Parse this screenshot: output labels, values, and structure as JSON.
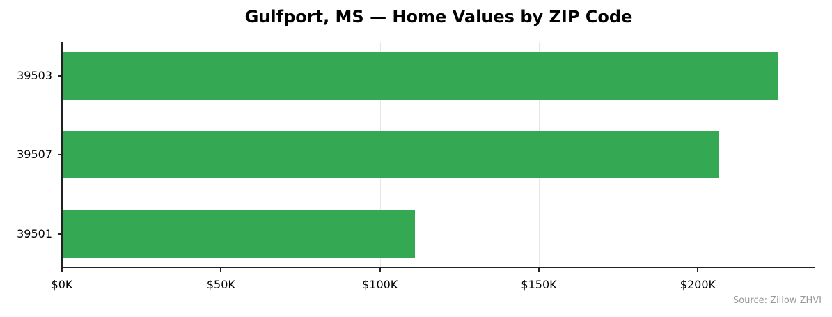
{
  "chart_data": {
    "type": "bar",
    "orientation": "horizontal",
    "title": "Gulfport, MS — Home Values by ZIP Code",
    "categories": [
      "39503",
      "39507",
      "39501"
    ],
    "values": [
      225400,
      206700,
      111000
    ],
    "xlabel": "",
    "ylabel": "",
    "xlim": [
      0,
      236700
    ],
    "x_ticks": [
      0,
      50000,
      100000,
      150000,
      200000
    ],
    "x_tick_labels": [
      "$0K",
      "$50K",
      "$100K",
      "$150K",
      "$200K"
    ],
    "grid": "vertical",
    "legend": "none",
    "bar_color": "#34a853",
    "source_note": "Source: Zillow ZHVI"
  },
  "labels": {
    "title": "Gulfport, MS — Home Values by ZIP Code",
    "source": "Source: Zillow ZHVI"
  }
}
